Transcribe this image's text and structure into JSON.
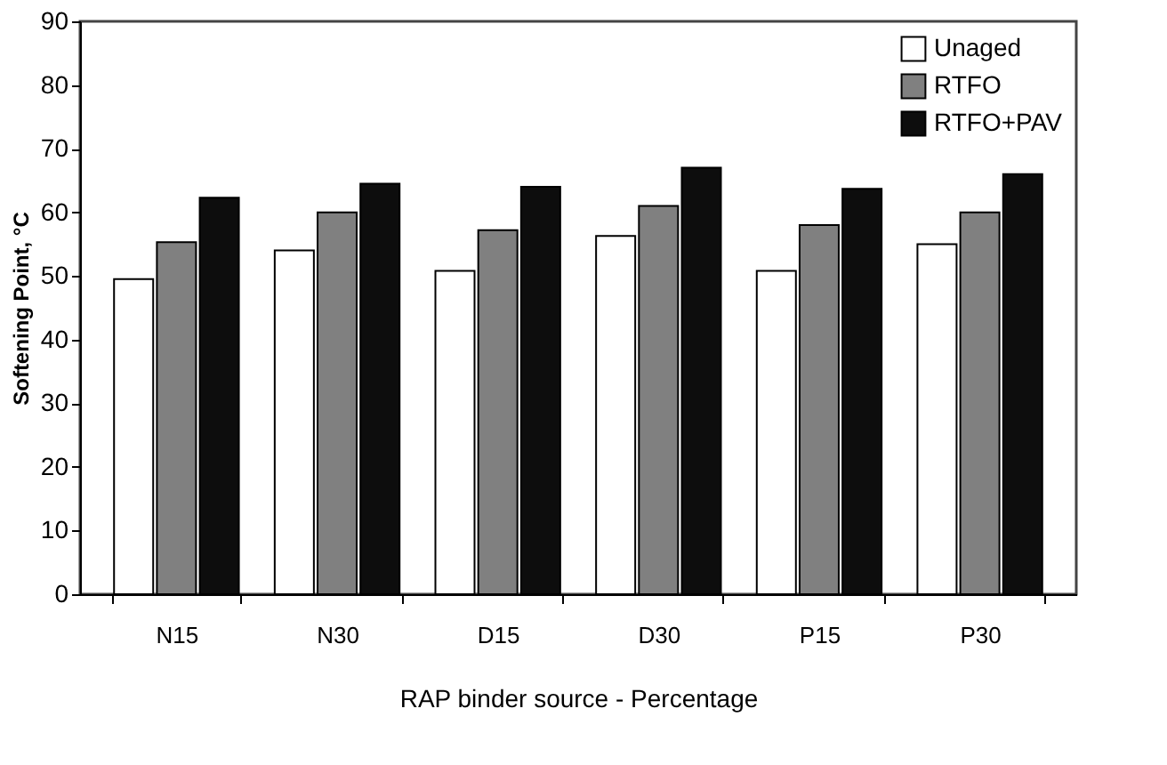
{
  "chart_data": {
    "type": "bar",
    "xlabel": "RAP binder source - Percentage",
    "ylabel": "Softening Point, °C",
    "categories": [
      "N15",
      "N30",
      "D15",
      "D30",
      "P15",
      "P30"
    ],
    "series": [
      {
        "name": "Unaged",
        "color": "#ffffff",
        "values": [
          49.5,
          54,
          50.8,
          56.3,
          50.8,
          55
        ]
      },
      {
        "name": "RTFO",
        "color": "#808080",
        "values": [
          55.3,
          60,
          57.2,
          61,
          58,
          60
        ]
      },
      {
        "name": "RTFO+PAV",
        "color": "#0d0d0d",
        "values": [
          62.3,
          64.5,
          64,
          67,
          63.7,
          66
        ]
      }
    ],
    "ylim": [
      0,
      90
    ],
    "yticks": [
      0,
      10,
      20,
      30,
      40,
      50,
      60,
      70,
      80,
      90
    ],
    "grid": false,
    "legend": "top right"
  }
}
